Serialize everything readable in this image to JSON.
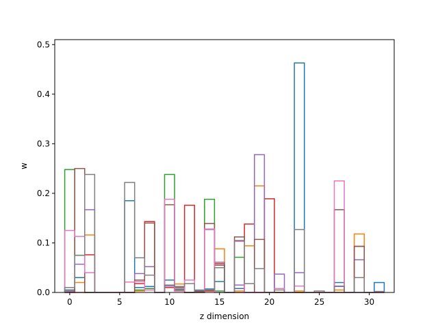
{
  "chart_data": {
    "type": "histogram-step",
    "title": "",
    "xlabel": "z dimension",
    "ylabel": "w",
    "xlim": [
      -1.5,
      32.5
    ],
    "ylim": [
      0,
      0.51
    ],
    "xticks": [
      0,
      5,
      10,
      15,
      20,
      25,
      30
    ],
    "yticks": [
      0.0,
      0.1,
      0.2,
      0.3,
      0.4,
      0.5
    ],
    "grid": false,
    "legend": "none",
    "bin_width": 1,
    "series": [
      {
        "color": "#1f77b4",
        "values": [
          0.005,
          0.03,
          0,
          0,
          0,
          0,
          0.185,
          0.01,
          0.012,
          0,
          0.025,
          0.005,
          0,
          0.003,
          0.007,
          0.022,
          0,
          0.008,
          0,
          0,
          0,
          0,
          0,
          0.463,
          0,
          0,
          0,
          0.02,
          0,
          0,
          0,
          0.02
        ]
      },
      {
        "color": "#ff7f0e",
        "values": [
          0.003,
          0.02,
          0.116,
          0,
          0,
          0,
          0,
          0.003,
          0.005,
          0,
          0.01,
          0.017,
          0,
          0.002,
          0.003,
          0.088,
          0,
          0.003,
          0.094,
          0.215,
          0,
          0,
          0,
          0.003,
          0,
          0,
          0,
          0.005,
          0,
          0.118,
          0,
          0
        ]
      },
      {
        "color": "#2ca02c",
        "values": [
          0.248,
          0.075,
          0,
          0,
          0,
          0,
          0,
          0.005,
          0.008,
          0,
          0.238,
          0.005,
          0,
          0.003,
          0.188,
          0.003,
          0,
          0.071,
          0,
          0,
          0,
          0,
          0,
          0,
          0,
          0,
          0,
          0,
          0,
          0,
          0,
          0
        ]
      },
      {
        "color": "#d62728",
        "values": [
          0,
          0,
          0.076,
          0,
          0,
          0,
          0,
          0.018,
          0.143,
          0,
          0.01,
          0.003,
          0.176,
          0,
          0.003,
          0.058,
          0,
          0,
          0.138,
          0,
          0.189,
          0,
          0,
          0,
          0,
          0,
          0,
          0,
          0,
          0.093,
          0,
          0
        ]
      },
      {
        "color": "#9467bd",
        "values": [
          0.002,
          0.057,
          0.167,
          0,
          0,
          0,
          0,
          0.038,
          0.052,
          0,
          0.013,
          0.007,
          0,
          0.005,
          0.127,
          0.061,
          0,
          0.015,
          0,
          0.278,
          0,
          0.037,
          0,
          0.04,
          0,
          0,
          0,
          0.013,
          0,
          0.066,
          0,
          0
        ]
      },
      {
        "color": "#8c564b",
        "values": [
          0,
          0.25,
          0,
          0,
          0,
          0,
          0,
          0.025,
          0.14,
          0,
          0.177,
          0.01,
          0,
          0.002,
          0.139,
          0.055,
          0,
          0.112,
          0,
          0.107,
          0,
          0,
          0,
          0,
          0,
          0,
          0,
          0.167,
          0,
          0.093,
          0,
          0
        ]
      },
      {
        "color": "#e377c2",
        "values": [
          0.125,
          0.113,
          0.04,
          0,
          0,
          0,
          0.021,
          0.022,
          0.005,
          0,
          0.188,
          0.003,
          0.025,
          0,
          0.128,
          0,
          0,
          0.103,
          0,
          0,
          0,
          0.008,
          0,
          0.013,
          0,
          0,
          0,
          0.225,
          0,
          0,
          0,
          0
        ]
      },
      {
        "color": "#7f7f7f",
        "values": [
          0.01,
          0.075,
          0.238,
          0,
          0,
          0,
          0.222,
          0.07,
          0.035,
          0,
          0.015,
          0.012,
          0.018,
          0,
          0.005,
          0.05,
          0,
          0.105,
          0.018,
          0.048,
          0,
          0.005,
          0,
          0.127,
          0,
          0.003,
          0,
          0.012,
          0,
          0.03,
          0,
          0.002
        ]
      }
    ]
  }
}
